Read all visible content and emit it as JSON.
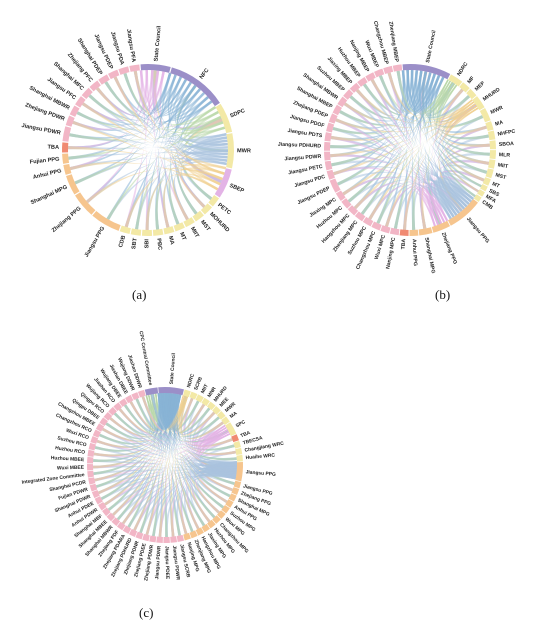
{
  "panels": [
    {
      "caption": "(a)",
      "nodes": [
        {
          "label": "State Council",
          "color": "#9b8fc8",
          "size": 3.0
        },
        {
          "label": "NFC",
          "color": "#9b8fc8",
          "size": 6.0
        },
        {
          "label": "SDPC",
          "color": "#f3e9a6",
          "size": 3.0
        },
        {
          "label": "MWR",
          "color": "#f3e9a6",
          "size": 3.5
        },
        {
          "label": "SBEP",
          "color": "#e3b3e6",
          "size": 3.0
        },
        {
          "label": "PETC",
          "color": "#f3e9a6",
          "size": 1.0
        },
        {
          "label": "MOHURD",
          "color": "#f3e9a6",
          "size": 1.0
        },
        {
          "label": "MST",
          "color": "#f3e9a6",
          "size": 1.0
        },
        {
          "label": "MIIT",
          "color": "#f3e9a6",
          "size": 1.0
        },
        {
          "label": "MT",
          "color": "#f3e9a6",
          "size": 1.0
        },
        {
          "label": "MA",
          "color": "#f3e9a6",
          "size": 1.0
        },
        {
          "label": "PBC",
          "color": "#f3e9a6",
          "size": 1.0
        },
        {
          "label": "SBI",
          "color": "#f3e9a6",
          "size": 1.0
        },
        {
          "label": "SBT",
          "color": "#f3e9a6",
          "size": 1.0
        },
        {
          "label": "CDB",
          "color": "#f3e9a6",
          "size": 1.0
        },
        {
          "label": "Jiangsu PPG",
          "color": "#f6c58e",
          "size": 3.0
        },
        {
          "label": "Zhejiang PPG",
          "color": "#f6c58e",
          "size": 2.5
        },
        {
          "label": "Shanghai MPG",
          "color": "#f6c58e",
          "size": 2.0
        },
        {
          "label": "Anhui PPG",
          "color": "#f6c58e",
          "size": 1.0
        },
        {
          "label": "Fujian PPG",
          "color": "#f6c58e",
          "size": 1.0
        },
        {
          "label": "TBA",
          "color": "#f08a72",
          "size": 1.0
        },
        {
          "label": "Jiangsu PDWR",
          "color": "#f2b6c6",
          "size": 1.5
        },
        {
          "label": "Zhejiang PDWR",
          "color": "#f2b6c6",
          "size": 1.0
        },
        {
          "label": "Shanghai MBWR",
          "color": "#f2b6c6",
          "size": 1.0
        },
        {
          "label": "Jiangsu PFC",
          "color": "#f2b6c6",
          "size": 1.0
        },
        {
          "label": "Shanghai MFC",
          "color": "#f2b6c6",
          "size": 1.0
        },
        {
          "label": "Zhejiang PFC",
          "color": "#f2b6c6",
          "size": 1.0
        },
        {
          "label": "Shanghai PDEP",
          "color": "#f2b6c6",
          "size": 1.0
        },
        {
          "label": "Jiangsu PDEP",
          "color": "#f2b6c6",
          "size": 1.0
        },
        {
          "label": "Jiangsu PDA",
          "color": "#f2b6c6",
          "size": 1.0
        },
        {
          "label": "Jiangsu PFA",
          "color": "#f2b6c6",
          "size": 1.0
        }
      ]
    },
    {
      "caption": "(b)",
      "nodes": [
        {
          "label": "State Council",
          "color": "#9b8fc8",
          "size": 5.5
        },
        {
          "label": "NDRC",
          "color": "#f3e9a6",
          "size": 1.5
        },
        {
          "label": "MF",
          "color": "#f3e9a6",
          "size": 1.0
        },
        {
          "label": "MEP",
          "color": "#f3e9a6",
          "size": 1.0
        },
        {
          "label": "MHURD",
          "color": "#f3e9a6",
          "size": 1.5
        },
        {
          "label": "MWR",
          "color": "#f3e9a6",
          "size": 1.5
        },
        {
          "label": "MA",
          "color": "#f3e9a6",
          "size": 1.0
        },
        {
          "label": "NHFPC",
          "color": "#f3e9a6",
          "size": 1.0
        },
        {
          "label": "SBOA",
          "color": "#f3e9a6",
          "size": 1.0
        },
        {
          "label": "MLR",
          "color": "#f3e9a6",
          "size": 1.0
        },
        {
          "label": "MIIT",
          "color": "#f3e9a6",
          "size": 1.0
        },
        {
          "label": "MST",
          "color": "#f3e9a6",
          "size": 1.0
        },
        {
          "label": "MT",
          "color": "#f3e9a6",
          "size": 0.8
        },
        {
          "label": "SBS",
          "color": "#f3e9a6",
          "size": 0.6
        },
        {
          "label": "MFA",
          "color": "#f3e9a6",
          "size": 0.6
        },
        {
          "label": "CMB",
          "color": "#f3e9a6",
          "size": 0.6
        },
        {
          "label": "Jiangsu PPG",
          "color": "#f6c58e",
          "size": 4.0
        },
        {
          "label": "Zhejiang PPG",
          "color": "#f6c58e",
          "size": 2.0
        },
        {
          "label": "Shanghai MPG",
          "color": "#f6c58e",
          "size": 1.5
        },
        {
          "label": "Anhui PPG",
          "color": "#f6c58e",
          "size": 1.0
        },
        {
          "label": "TBA",
          "color": "#f08a72",
          "size": 1.0
        },
        {
          "label": "Nanjing MPC",
          "color": "#f2b6c6",
          "size": 1.0
        },
        {
          "label": "Wuxi MPC",
          "color": "#f2b6c6",
          "size": 1.0
        },
        {
          "label": "Changzhou MPC",
          "color": "#f2b6c6",
          "size": 1.0
        },
        {
          "label": "Suzhou MPC",
          "color": "#f2b6c6",
          "size": 1.0
        },
        {
          "label": "Zhenjiang MPC",
          "color": "#f2b6c6",
          "size": 1.0
        },
        {
          "label": "Hangzhou MPC",
          "color": "#f2b6c6",
          "size": 1.0
        },
        {
          "label": "Huzhou MPC",
          "color": "#f2b6c6",
          "size": 1.0
        },
        {
          "label": "Jiaxing MPC",
          "color": "#f2b6c6",
          "size": 1.0
        },
        {
          "label": "Jiangsu PDEP",
          "color": "#f2b6c6",
          "size": 1.5
        },
        {
          "label": "Jiangsu PDC",
          "color": "#f2b6c6",
          "size": 1.0
        },
        {
          "label": "Jiangsu PETC",
          "color": "#f2b6c6",
          "size": 1.0
        },
        {
          "label": "Jiangsu PDWR",
          "color": "#f2b6c6",
          "size": 1.0
        },
        {
          "label": "Jiangsu PDHURD",
          "color": "#f2b6c6",
          "size": 1.0
        },
        {
          "label": "Jiangsu PDTS",
          "color": "#f2b6c6",
          "size": 1.0
        },
        {
          "label": "Jiangsu PDOF",
          "color": "#f2b6c6",
          "size": 1.0
        },
        {
          "label": "Zhejiang PDEP",
          "color": "#f2b6c6",
          "size": 1.0
        },
        {
          "label": "Shanghai MBEP",
          "color": "#f2b6c6",
          "size": 1.0
        },
        {
          "label": "Shanghai MBWR",
          "color": "#f2b6c6",
          "size": 1.0
        },
        {
          "label": "Suzhou MBEP",
          "color": "#f2b6c6",
          "size": 1.0
        },
        {
          "label": "Jiaxing MBEP",
          "color": "#f2b6c6",
          "size": 1.0
        },
        {
          "label": "Huzhou MBEP",
          "color": "#f2b6c6",
          "size": 1.0
        },
        {
          "label": "Nanjing MBEP",
          "color": "#f2b6c6",
          "size": 1.0
        },
        {
          "label": "Wuxi MBEP",
          "color": "#f2b6c6",
          "size": 1.0
        },
        {
          "label": "Changzhou MBEP",
          "color": "#f2b6c6",
          "size": 1.0
        },
        {
          "label": "Zhenjiang MBEP",
          "color": "#f2b6c6",
          "size": 1.0
        }
      ]
    },
    {
      "caption": "(c)",
      "nodes": [
        {
          "label": "State Council",
          "color": "#9b8fc8",
          "size": 4.0
        },
        {
          "label": "NDRC",
          "color": "#f3e9a6",
          "size": 1.0
        },
        {
          "label": "SCRB",
          "color": "#f3e9a6",
          "size": 1.0
        },
        {
          "label": "MIIT",
          "color": "#f3e9a6",
          "size": 1.0
        },
        {
          "label": "MNR",
          "color": "#f3e9a6",
          "size": 1.0
        },
        {
          "label": "MHURD",
          "color": "#f3e9a6",
          "size": 1.0
        },
        {
          "label": "MEE",
          "color": "#f3e9a6",
          "size": 1.0
        },
        {
          "label": "MWR",
          "color": "#f3e9a6",
          "size": 1.0
        },
        {
          "label": "MA",
          "color": "#f3e9a6",
          "size": 1.0
        },
        {
          "label": "SPC",
          "color": "#f3e9a6",
          "size": 2.0
        },
        {
          "label": "TBA",
          "color": "#f08a72",
          "size": 1.0
        },
        {
          "label": "TBECSA",
          "color": "#f3e9a6",
          "size": 1.0
        },
        {
          "label": "Changjiang WRC",
          "color": "#f3e9a6",
          "size": 1.0
        },
        {
          "label": "Huaihe WRC",
          "color": "#f3e9a6",
          "size": 1.0
        },
        {
          "label": "Jiangsu PPG",
          "color": "#f6c58e",
          "size": 3.0
        },
        {
          "label": "Jiangsu PPG",
          "color": "#f6c58e",
          "size": 1.0
        },
        {
          "label": "Zhejiang PPG",
          "color": "#f6c58e",
          "size": 1.0
        },
        {
          "label": "Shanghai MPG",
          "color": "#f6c58e",
          "size": 1.0
        },
        {
          "label": "Anhui PPG",
          "color": "#f6c58e",
          "size": 1.0
        },
        {
          "label": "Suzhou MPG",
          "color": "#f6c58e",
          "size": 1.0
        },
        {
          "label": "Wuxi MPG",
          "color": "#f6c58e",
          "size": 1.0
        },
        {
          "label": "Changzhou MPG",
          "color": "#f6c58e",
          "size": 1.0
        },
        {
          "label": "Huzhou MPG",
          "color": "#f6c58e",
          "size": 1.0
        },
        {
          "label": "Jiaxing MPG",
          "color": "#f6c58e",
          "size": 1.0
        },
        {
          "label": "Hangzhou MPG",
          "color": "#f6c58e",
          "size": 1.0
        },
        {
          "label": "Zhenjiang MPG",
          "color": "#f6c58e",
          "size": 1.0
        },
        {
          "label": "Nanjing MPG",
          "color": "#f6c58e",
          "size": 1.0
        },
        {
          "label": "Jiangsu SCRB",
          "color": "#f2b6c6",
          "size": 1.0
        },
        {
          "label": "Jiangsu PDWR",
          "color": "#f2b6c6",
          "size": 1.0
        },
        {
          "label": "Jiangsu PDEE",
          "color": "#f2b6c6",
          "size": 1.0
        },
        {
          "label": "Jiangsu PDNR",
          "color": "#f2b6c6",
          "size": 1.0
        },
        {
          "label": "Zhejiang PDWR",
          "color": "#f2b6c6",
          "size": 1.0
        },
        {
          "label": "Zhejiang PDEE",
          "color": "#f2b6c6",
          "size": 1.0
        },
        {
          "label": "Zhejiang PDNR",
          "color": "#f2b6c6",
          "size": 1.0
        },
        {
          "label": "Zhejiang PDHURD",
          "color": "#f2b6c6",
          "size": 1.0
        },
        {
          "label": "Zhejiang PDARA",
          "color": "#f2b6c6",
          "size": 1.0
        },
        {
          "label": "Zhejiang PDF",
          "color": "#f2b6c6",
          "size": 1.0
        },
        {
          "label": "Shanghai MBWR",
          "color": "#f2b6c6",
          "size": 1.0
        },
        {
          "label": "Shanghai MBEE",
          "color": "#f2b6c6",
          "size": 1.0
        },
        {
          "label": "Shanghai MBF",
          "color": "#f2b6c6",
          "size": 1.0
        },
        {
          "label": "Anhui PDWR",
          "color": "#f2b6c6",
          "size": 1.0
        },
        {
          "label": "Anhui PDEE",
          "color": "#f2b6c6",
          "size": 1.0
        },
        {
          "label": "Shanghai PDWR",
          "color": "#f2b6c6",
          "size": 1.0
        },
        {
          "label": "Fujian PDWR",
          "color": "#f2b6c6",
          "size": 1.0
        },
        {
          "label": "Shanghai PCDR",
          "color": "#f2b6c6",
          "size": 1.0
        },
        {
          "label": "Integrated Zone Committee",
          "color": "#f2b6c6",
          "size": 1.0
        },
        {
          "label": "Wuxi MBEE",
          "color": "#f2b6c6",
          "size": 1.0
        },
        {
          "label": "Huzhou MBEE",
          "color": "#f2b6c6",
          "size": 1.0
        },
        {
          "label": "Huzhou RCO",
          "color": "#f2b6c6",
          "size": 1.0
        },
        {
          "label": "Suzhou RCO",
          "color": "#f2b6c6",
          "size": 1.0
        },
        {
          "label": "Wuxi RCO",
          "color": "#f2b6c6",
          "size": 1.0
        },
        {
          "label": "Changzhou RCO",
          "color": "#f2b6c6",
          "size": 1.0
        },
        {
          "label": "Changzhou MBEE",
          "color": "#f2b6c6",
          "size": 1.0
        },
        {
          "label": "Qingpu DBEE",
          "color": "#f2b6c6",
          "size": 1.0
        },
        {
          "label": "Qingpu RCO",
          "color": "#f2b6c6",
          "size": 1.0
        },
        {
          "label": "Wujiang RCO",
          "color": "#f2b6c6",
          "size": 1.0
        },
        {
          "label": "Jiashan RCO",
          "color": "#f2b6c6",
          "size": 1.0
        },
        {
          "label": "Wujiang DBEE",
          "color": "#f2b6c6",
          "size": 1.0
        },
        {
          "label": "Jiashan DBEE",
          "color": "#f2b6c6",
          "size": 1.0
        },
        {
          "label": "Wujiang DDWR",
          "color": "#f2b6c6",
          "size": 1.0
        },
        {
          "label": "Jiashan DDWR",
          "color": "#f2b6c6",
          "size": 1.0
        },
        {
          "label": "CPC Central Committee",
          "color": "#9b8fc8",
          "size": 2.0
        }
      ]
    }
  ]
}
